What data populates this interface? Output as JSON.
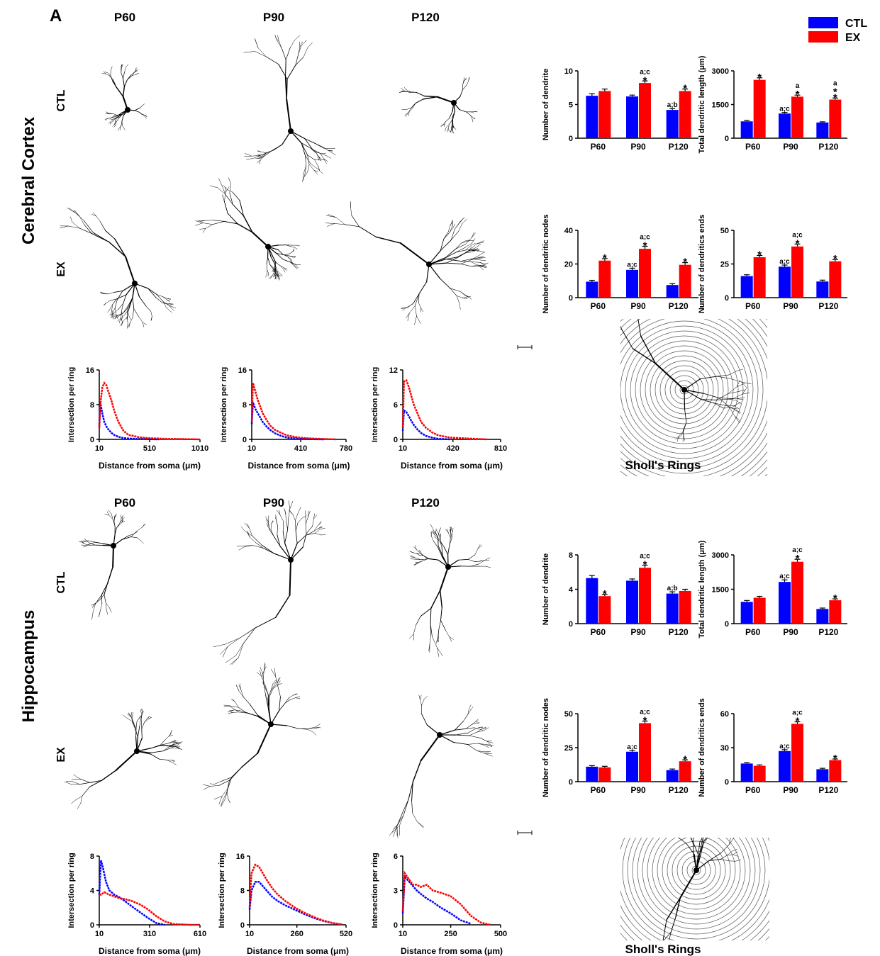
{
  "figure": {
    "panel": "A",
    "sections": [
      {
        "title": "Cerebral Cortex",
        "columns": [
          "P60",
          "P90",
          "P120"
        ],
        "rows": [
          "CTL",
          "EX"
        ],
        "sholl_label": "Sholl's Rings"
      },
      {
        "title": "Hippocampus",
        "columns": [
          "P60",
          "P90",
          "P120"
        ],
        "rows": [
          "CTL",
          "EX"
        ],
        "sholl_label": "Sholl's Rings"
      }
    ]
  },
  "chart_data": [
    {
      "type": "bar",
      "y_label": "Number of dendrite",
      "categories": [
        "P60",
        "P90",
        "P120"
      ],
      "ylim": [
        0,
        10
      ],
      "yticks": [
        0,
        5,
        10
      ],
      "series": [
        {
          "name": "CTL",
          "color": "#0000ff",
          "values": [
            6.3,
            6.2,
            4.2
          ],
          "errors": [
            0.3,
            0.2,
            0.2
          ],
          "annotations": [
            null,
            null,
            [
              "a;b"
            ]
          ]
        },
        {
          "name": "EX",
          "color": "#ff0000",
          "values": [
            7.0,
            8.2,
            7.0
          ],
          "errors": [
            0.3,
            0.3,
            0.3
          ],
          "annotations": [
            null,
            [
              "a;c",
              "*"
            ],
            [
              "*"
            ]
          ]
        }
      ]
    },
    {
      "type": "bar",
      "y_label": "Total dendritic length (μm)",
      "categories": [
        "P60",
        "P90",
        "P120"
      ],
      "ylim": [
        0,
        3000
      ],
      "yticks": [
        0,
        1500,
        3000
      ],
      "series": [
        {
          "name": "CTL",
          "color": "#0000ff",
          "values": [
            750,
            1100,
            700
          ],
          "errors": [
            40,
            50,
            30
          ],
          "annotations": [
            null,
            [
              "a;c"
            ],
            null
          ]
        },
        {
          "name": "EX",
          "color": "#ff0000",
          "values": [
            2600,
            1850,
            1720
          ],
          "errors": [
            90,
            70,
            70
          ],
          "annotations": [
            [
              "*"
            ],
            [
              "a",
              "*"
            ],
            [
              "a",
              "*",
              "*"
            ]
          ]
        }
      ]
    },
    {
      "type": "bar",
      "y_label": "Number of dendritic nodes",
      "categories": [
        "P60",
        "P90",
        "P120"
      ],
      "ylim": [
        0,
        40
      ],
      "yticks": [
        0,
        20,
        40
      ],
      "series": [
        {
          "name": "CTL",
          "color": "#0000ff",
          "values": [
            9.5,
            16.5,
            7.5
          ],
          "errors": [
            0.8,
            1,
            0.8
          ],
          "annotations": [
            null,
            [
              "a;c"
            ],
            null
          ]
        },
        {
          "name": "EX",
          "color": "#ff0000",
          "values": [
            22,
            29,
            19.5
          ],
          "errors": [
            1.2,
            1.5,
            1.3
          ],
          "annotations": [
            [
              "*"
            ],
            [
              "a;c",
              "*"
            ],
            [
              "*"
            ]
          ]
        }
      ]
    },
    {
      "type": "bar",
      "y_label": "Number of dendritics ends",
      "categories": [
        "P60",
        "P90",
        "P120"
      ],
      "ylim": [
        0,
        50
      ],
      "yticks": [
        0,
        25,
        50
      ],
      "series": [
        {
          "name": "CTL",
          "color": "#0000ff",
          "values": [
            16,
            23,
            12
          ],
          "errors": [
            1,
            1.2,
            1
          ],
          "annotations": [
            null,
            [
              "a;c"
            ],
            null
          ]
        },
        {
          "name": "EX",
          "color": "#ff0000",
          "values": [
            30,
            38,
            27
          ],
          "errors": [
            1.3,
            1.8,
            1.3
          ],
          "annotations": [
            [
              "*"
            ],
            [
              "a;c",
              "*"
            ],
            [
              "*"
            ]
          ]
        }
      ]
    },
    {
      "type": "line",
      "y_label": "Intersection per ring",
      "x_label": "Distance from soma  (μm)",
      "xlim": [
        10,
        1010
      ],
      "xticks": [
        10,
        510,
        1010
      ],
      "ylim": [
        0,
        16
      ],
      "yticks": [
        0,
        8,
        16
      ],
      "series": [
        {
          "name": "CTL",
          "color": "#0000ff",
          "x": [
            10,
            20,
            40,
            60,
            80,
            100,
            130,
            160,
            200,
            250,
            300,
            400,
            500,
            600
          ],
          "values": [
            3,
            8.5,
            6,
            4,
            3,
            2.3,
            1.5,
            1,
            0.6,
            0.3,
            0.2,
            0.1,
            0.05,
            0
          ]
        },
        {
          "name": "EX",
          "color": "#ff0000",
          "x": [
            10,
            20,
            40,
            60,
            80,
            100,
            130,
            160,
            200,
            250,
            300,
            350,
            400,
            500,
            600,
            700,
            800,
            900,
            1010
          ],
          "values": [
            2.5,
            8,
            12,
            13,
            12.5,
            11,
            9,
            6.5,
            4,
            2,
            1,
            0.8,
            0.5,
            0.3,
            0.2,
            0.1,
            0.1,
            0.05,
            0
          ]
        }
      ]
    },
    {
      "type": "line",
      "y_label": "Intersection per ring",
      "x_label": "Distance from soma  (μm)",
      "xlim": [
        10,
        780
      ],
      "xticks": [
        10,
        410,
        780
      ],
      "ylim": [
        0,
        16
      ],
      "yticks": [
        0,
        8,
        16
      ],
      "series": [
        {
          "name": "CTL",
          "color": "#0000ff",
          "x": [
            10,
            20,
            40,
            60,
            80,
            100,
            130,
            160,
            200,
            250,
            300,
            400,
            500,
            600
          ],
          "values": [
            3.5,
            8.5,
            7,
            6,
            5,
            4,
            3,
            2.2,
            1.4,
            0.8,
            0.4,
            0.15,
            0.05,
            0
          ]
        },
        {
          "name": "EX",
          "color": "#ff0000",
          "x": [
            10,
            20,
            40,
            60,
            80,
            100,
            130,
            160,
            200,
            250,
            300,
            400,
            500,
            600,
            700
          ],
          "values": [
            4,
            13,
            11,
            9,
            7.5,
            6,
            4.5,
            3.2,
            2.2,
            1.5,
            0.9,
            0.4,
            0.2,
            0.1,
            0
          ]
        }
      ]
    },
    {
      "type": "line",
      "y_label": "Intersection per ring",
      "x_label": "Distance from soma  (μm)",
      "xlim": [
        10,
        810
      ],
      "xticks": [
        10,
        420,
        810
      ],
      "ylim": [
        0,
        12
      ],
      "yticks": [
        0,
        6,
        12
      ],
      "series": [
        {
          "name": "CTL",
          "color": "#0000ff",
          "x": [
            10,
            20,
            40,
            60,
            80,
            100,
            130,
            160,
            200,
            250,
            300,
            400
          ],
          "values": [
            1.5,
            5,
            4.7,
            4,
            3.2,
            2.5,
            1.7,
            1.1,
            0.6,
            0.3,
            0.1,
            0
          ]
        },
        {
          "name": "EX",
          "color": "#ff0000",
          "x": [
            10,
            20,
            40,
            60,
            80,
            100,
            130,
            160,
            200,
            250,
            300,
            400,
            500,
            600,
            700
          ],
          "values": [
            2,
            10,
            10.2,
            9,
            7.5,
            6,
            4.5,
            3,
            2,
            1.2,
            0.7,
            0.3,
            0.2,
            0.1,
            0
          ]
        }
      ]
    },
    {
      "type": "bar",
      "y_label": "Number of dendrite",
      "categories": [
        "P60",
        "P90",
        "P120"
      ],
      "ylim": [
        0,
        8
      ],
      "yticks": [
        0,
        4,
        8
      ],
      "series": [
        {
          "name": "CTL",
          "color": "#0000ff",
          "values": [
            5.3,
            5.0,
            3.5
          ],
          "errors": [
            0.3,
            0.2,
            0.2
          ],
          "annotations": [
            null,
            null,
            [
              "a;b"
            ]
          ]
        },
        {
          "name": "EX",
          "color": "#ff0000",
          "values": [
            3.2,
            6.5,
            3.8
          ],
          "errors": [
            0.2,
            0.3,
            0.2
          ],
          "annotations": [
            [
              "*"
            ],
            [
              "a;c",
              "*"
            ],
            null
          ]
        }
      ]
    },
    {
      "type": "bar",
      "y_label": "Total dendritic length (μm)",
      "categories": [
        "P60",
        "P90",
        "P120"
      ],
      "ylim": [
        0,
        3000
      ],
      "yticks": [
        0,
        1500,
        3000
      ],
      "series": [
        {
          "name": "CTL",
          "color": "#0000ff",
          "values": [
            950,
            1820,
            640
          ],
          "errors": [
            60,
            90,
            40
          ],
          "annotations": [
            null,
            [
              "a;c"
            ],
            null
          ]
        },
        {
          "name": "EX",
          "color": "#ff0000",
          "values": [
            1130,
            2700,
            1020
          ],
          "errors": [
            60,
            110,
            60
          ],
          "annotations": [
            null,
            [
              "a;c",
              "*"
            ],
            [
              "*"
            ]
          ]
        }
      ]
    },
    {
      "type": "bar",
      "y_label": "Number of dendritic nodes",
      "categories": [
        "P60",
        "P90",
        "P120"
      ],
      "ylim": [
        0,
        50
      ],
      "yticks": [
        0,
        25,
        50
      ],
      "series": [
        {
          "name": "CTL",
          "color": "#0000ff",
          "values": [
            11,
            22,
            8.5
          ],
          "errors": [
            0.8,
            1,
            0.8
          ],
          "annotations": [
            null,
            [
              "a;c"
            ],
            null
          ]
        },
        {
          "name": "EX",
          "color": "#ff0000",
          "values": [
            10.5,
            43,
            15
          ],
          "errors": [
            0.8,
            1.5,
            1
          ],
          "annotations": [
            null,
            [
              "a;c",
              "*"
            ],
            [
              "*"
            ]
          ]
        }
      ]
    },
    {
      "type": "bar",
      "y_label": "Number of dendritics ends",
      "categories": [
        "P60",
        "P90",
        "P120"
      ],
      "ylim": [
        0,
        60
      ],
      "yticks": [
        0,
        30,
        60
      ],
      "series": [
        {
          "name": "CTL",
          "color": "#0000ff",
          "values": [
            16,
            27,
            11
          ],
          "errors": [
            0.8,
            1.2,
            0.8
          ],
          "annotations": [
            null,
            [
              "a;c"
            ],
            null
          ]
        },
        {
          "name": "EX",
          "color": "#ff0000",
          "values": [
            14,
            51,
            19
          ],
          "errors": [
            0.8,
            1.8,
            1
          ],
          "annotations": [
            null,
            [
              "a;c",
              "*"
            ],
            [
              "*"
            ]
          ]
        }
      ]
    },
    {
      "type": "line",
      "y_label": "Intersection per ring",
      "x_label": "Distance from soma  (μm)",
      "xlim": [
        10,
        610
      ],
      "xticks": [
        10,
        310,
        610
      ],
      "ylim": [
        0,
        8
      ],
      "yticks": [
        0,
        4,
        8
      ],
      "series": [
        {
          "name": "CTL",
          "color": "#0000ff",
          "x": [
            10,
            20,
            30,
            50,
            70,
            100,
            130,
            160,
            200,
            250,
            300,
            350,
            400
          ],
          "values": [
            3.5,
            7.5,
            6.8,
            5,
            4,
            3.5,
            3.2,
            2.8,
            2.2,
            1.5,
            0.8,
            0.2,
            0
          ]
        },
        {
          "name": "EX",
          "color": "#ff0000",
          "x": [
            10,
            20,
            40,
            70,
            100,
            130,
            160,
            200,
            250,
            300,
            350,
            400,
            450,
            500,
            550,
            610
          ],
          "values": [
            3.5,
            3.5,
            3.8,
            3.5,
            3.3,
            3.1,
            3,
            2.8,
            2.4,
            1.8,
            1,
            0.4,
            0.1,
            0.05,
            0,
            0
          ]
        }
      ]
    },
    {
      "type": "line",
      "y_label": "Intersection per ring",
      "x_label": "Distance from soma  (μm)",
      "xlim": [
        10,
        520
      ],
      "xticks": [
        10,
        260,
        520
      ],
      "ylim": [
        0,
        16
      ],
      "yticks": [
        0,
        8,
        16
      ],
      "series": [
        {
          "name": "CTL",
          "color": "#0000ff",
          "x": [
            10,
            20,
            40,
            60,
            80,
            100,
            130,
            160,
            200,
            250,
            300,
            350,
            400,
            450,
            500
          ],
          "values": [
            3.5,
            8,
            10,
            10,
            9,
            8,
            6.5,
            5.5,
            4.5,
            3.5,
            2.5,
            1.6,
            0.9,
            0.4,
            0.1
          ]
        },
        {
          "name": "EX",
          "color": "#ff0000",
          "x": [
            10,
            20,
            40,
            60,
            80,
            100,
            130,
            160,
            200,
            250,
            300,
            350,
            400,
            450,
            500
          ],
          "values": [
            4,
            12,
            14,
            13.5,
            12,
            10.5,
            8.5,
            7,
            5.5,
            4,
            2.8,
            1.8,
            1,
            0.4,
            0.1
          ]
        }
      ]
    },
    {
      "type": "line",
      "y_label": "Intersection per ring",
      "x_label": "Distance from soma  (μm)",
      "xlim": [
        10,
        500
      ],
      "xticks": [
        10,
        250,
        500
      ],
      "ylim": [
        0,
        6
      ],
      "yticks": [
        0,
        3,
        6
      ],
      "series": [
        {
          "name": "CTL",
          "color": "#0000ff",
          "x": [
            10,
            20,
            40,
            60,
            80,
            100,
            130,
            160,
            200,
            250,
            300,
            350
          ],
          "values": [
            1,
            4.2,
            3.8,
            3.4,
            3,
            2.7,
            2.3,
            2,
            1.5,
            1,
            0.4,
            0.1
          ]
        },
        {
          "name": "EX",
          "color": "#ff0000",
          "x": [
            10,
            20,
            40,
            60,
            80,
            100,
            130,
            160,
            200,
            250,
            300,
            350,
            400,
            450
          ],
          "values": [
            1.2,
            4.5,
            4,
            3.5,
            3.5,
            3.3,
            3.5,
            3,
            2.8,
            2.5,
            1.8,
            0.8,
            0.2,
            0
          ]
        }
      ]
    }
  ]
}
